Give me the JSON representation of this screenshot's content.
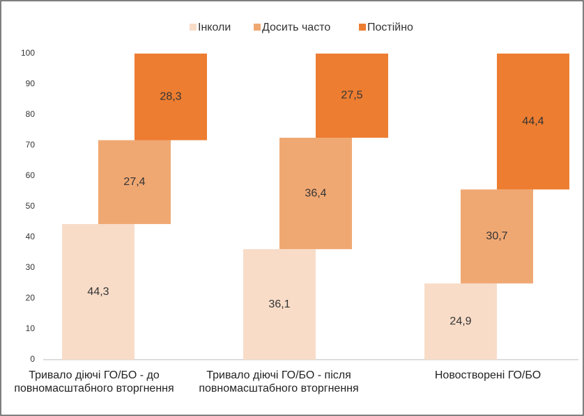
{
  "chart_data": {
    "type": "stacked_bar_offset",
    "categories": [
      "Тривало діючі ГО/БО - до повномасштабного вторгнення",
      "Тривало діючі ГО/БО - після повномасштабного вторгнення",
      "Новостворені ГО/БО"
    ],
    "series": [
      {
        "name": "Інколи",
        "color": "#f8dcc8",
        "values": [
          44.3,
          36.1,
          24.9
        ],
        "value_labels": [
          "44,3",
          "36,1",
          "24,9"
        ]
      },
      {
        "name": "Досить часто",
        "color": "#f0a873",
        "values": [
          27.4,
          36.4,
          30.7
        ],
        "value_labels": [
          "27,4",
          "36,4",
          "30,7"
        ]
      },
      {
        "name": "Постійно",
        "color": "#ed7d31",
        "values": [
          28.3,
          27.5,
          44.4
        ],
        "value_labels": [
          "28,3",
          "27,5",
          "44,4"
        ]
      }
    ],
    "ylim": [
      0,
      100
    ],
    "yticks": [
      0,
      10,
      20,
      30,
      40,
      50,
      60,
      70,
      80,
      90,
      100
    ],
    "legend": "top"
  }
}
